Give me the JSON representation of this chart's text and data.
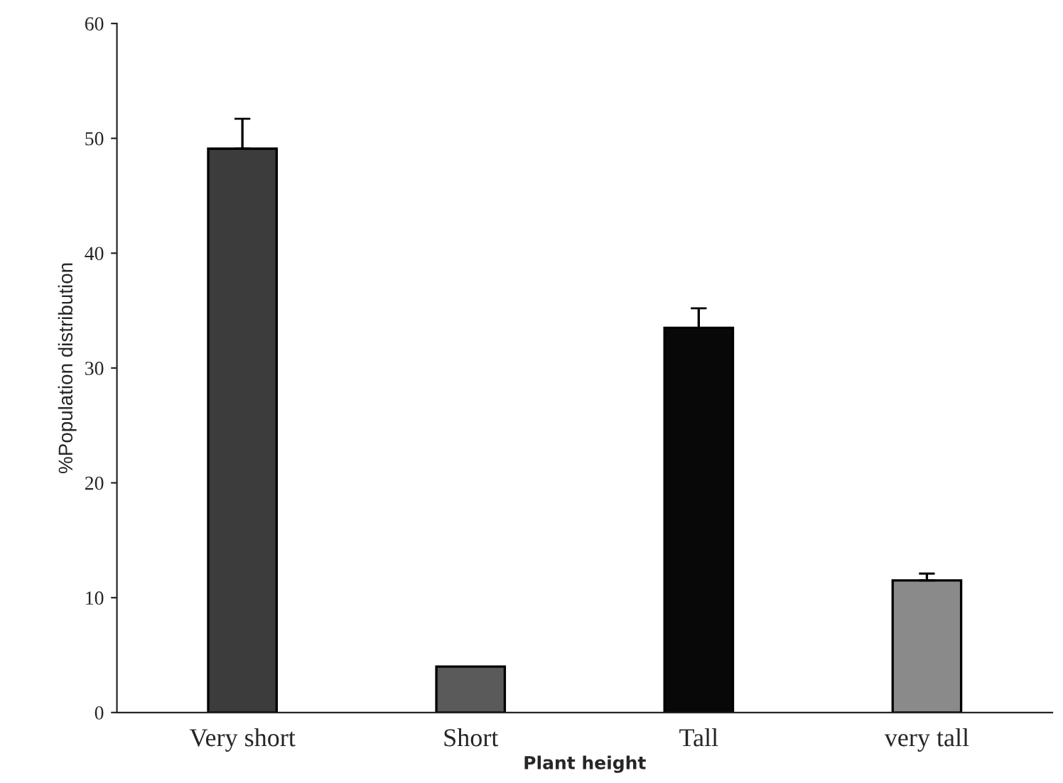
{
  "chart_data": {
    "type": "bar",
    "xlabel": "Plant height",
    "ylabel": "%Population distribution",
    "categories": [
      "Very short",
      "Short",
      "Tall",
      "very tall"
    ],
    "values": [
      49.1,
      4.0,
      33.5,
      11.5
    ],
    "errors": [
      2.6,
      null,
      1.7,
      0.6
    ],
    "colors": [
      "#3c3c3c",
      "#5a5a5a",
      "#080808",
      "#8a8a8a"
    ],
    "ylim": [
      0,
      60
    ],
    "yticks": [
      0,
      10,
      20,
      30,
      40,
      50,
      60
    ],
    "grid": false
  }
}
